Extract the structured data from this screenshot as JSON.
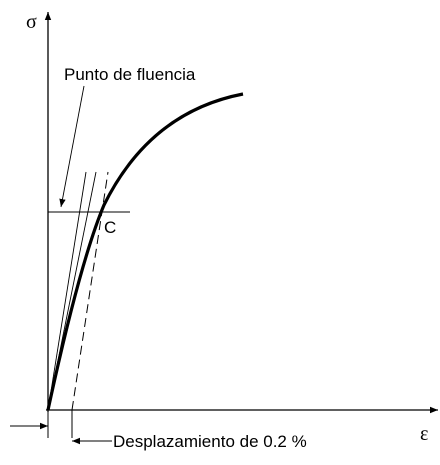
{
  "y_axis_label": "σ",
  "x_axis_label": "ε",
  "yield_label": "Punto de fluencia",
  "point_label": "C",
  "offset_label": "Desplazamiento de 0.2 %"
}
